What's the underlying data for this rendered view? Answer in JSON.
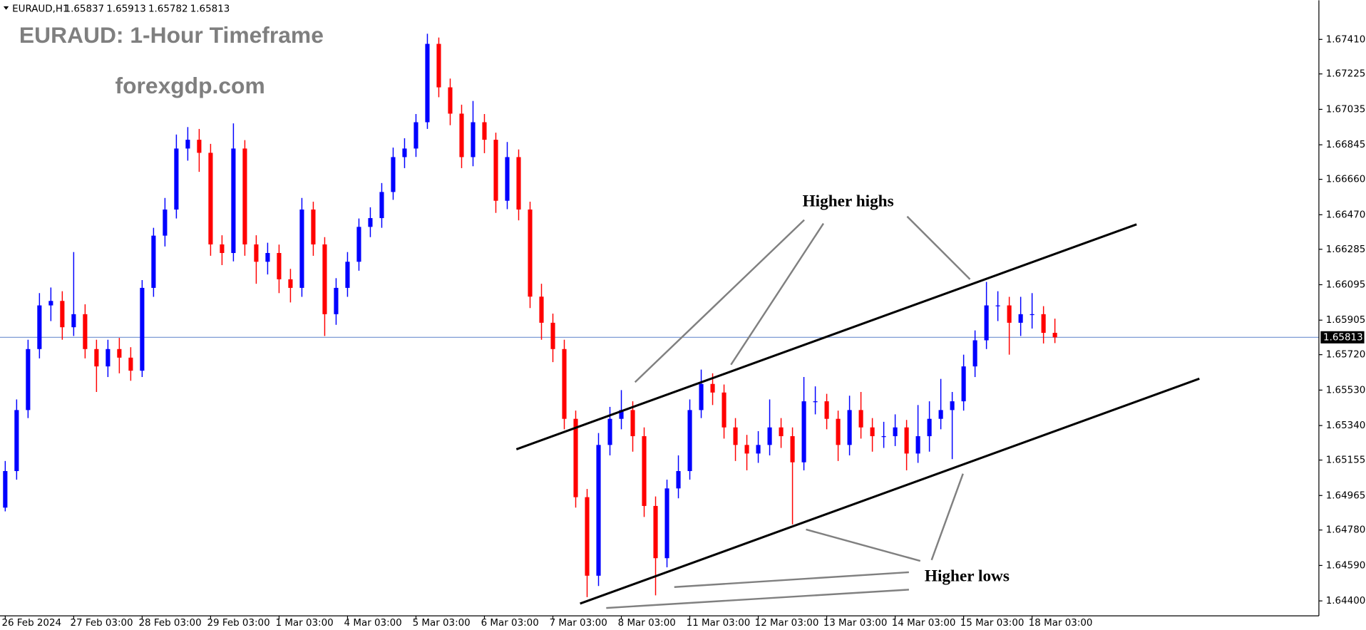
{
  "chart_data": {
    "type": "candlestick",
    "title": "EURAUD: 1-Hour Timeframe",
    "subtitle": "forexgdp.com",
    "symbol": "EURAUD,H1",
    "last_bar": {
      "open": 1.65837,
      "high": 1.65913,
      "low": 1.65782,
      "close": 1.65813
    },
    "current_price": 1.65813,
    "annotations": [
      "Higher highs",
      "Higher lows"
    ],
    "up_color": "#0000ff",
    "down_color": "#ff0000",
    "price_line_color": "#6f8fcf",
    "categories": [
      "26 Feb 2024",
      null,
      null,
      null,
      null,
      null,
      "27 Feb 03:00",
      null,
      null,
      null,
      null,
      null,
      "28 Feb 03:00",
      null,
      null,
      null,
      null,
      null,
      "29 Feb 03:00",
      null,
      null,
      null,
      null,
      null,
      "1 Mar 03:00",
      null,
      null,
      null,
      null,
      null,
      "4 Mar 03:00",
      null,
      null,
      null,
      null,
      null,
      "5 Mar 03:00",
      null,
      null,
      null,
      null,
      null,
      "6 Mar 03:00",
      null,
      null,
      null,
      null,
      null,
      "7 Mar 03:00",
      null,
      null,
      null,
      null,
      null,
      "8 Mar 03:00",
      null,
      null,
      null,
      null,
      null,
      "11 Mar 03:00",
      null,
      null,
      null,
      null,
      null,
      "12 Mar 03:00",
      null,
      null,
      null,
      null,
      null,
      "13 Mar 03:00",
      null,
      null,
      null,
      null,
      null,
      "14 Mar 03:00",
      null,
      null,
      null,
      null,
      null,
      "15 Mar 03:00",
      null,
      null,
      null,
      null,
      null,
      "18 Mar 03:00",
      null,
      null
    ],
    "open": [
      1.649,
      1.65096,
      1.65423,
      1.6575,
      1.65984,
      1.66008,
      1.65867,
      1.65937,
      1.6575,
      1.65657,
      1.6575,
      1.65704,
      1.65634,
      1.66078,
      1.66358,
      1.66498,
      1.66825,
      1.66872,
      1.66802,
      1.66311,
      1.66265,
      1.66825,
      1.66311,
      1.66218,
      1.66265,
      1.66124,
      1.66078,
      1.66498,
      1.66311,
      1.65937,
      1.66078,
      1.66218,
      1.66405,
      1.66452,
      1.66592,
      1.66779,
      1.66825,
      1.66966,
      1.67386,
      1.67153,
      1.67012,
      1.66779,
      1.66966,
      1.66872,
      1.66545,
      1.66779,
      1.66498,
      1.66031,
      1.65891,
      1.6575,
      1.65376,
      1.64956,
      1.64535,
      1.65236,
      1.65376,
      1.65423,
      1.65283,
      1.64909,
      1.64629,
      1.65003,
      1.65096,
      1.65423,
      1.65563,
      1.65517,
      1.6533,
      1.65236,
      1.6519,
      1.65236,
      1.6533,
      1.65283,
      1.65143,
      1.6547,
      1.6547,
      1.65376,
      1.65236,
      1.65423,
      1.6533,
      1.65283,
      1.65283,
      1.6533,
      1.6519,
      1.65283,
      1.65376,
      1.65423,
      1.6547,
      1.65657,
      1.65797,
      1.65984,
      1.65984,
      1.65891,
      1.65937,
      1.65937,
      1.65837
    ],
    "high": [
      1.6515,
      1.6548,
      1.658,
      1.6605,
      1.6608,
      1.6606,
      1.6627,
      1.6599,
      1.658,
      1.658,
      1.6581,
      1.6576,
      1.6612,
      1.664,
      1.6656,
      1.669,
      1.6694,
      1.6693,
      1.6685,
      1.6636,
      1.6696,
      1.6687,
      1.6636,
      1.6632,
      1.6631,
      1.6618,
      1.6656,
      1.6654,
      1.6635,
      1.6613,
      1.6627,
      1.6645,
      1.6651,
      1.6664,
      1.6683,
      1.6688,
      1.6701,
      1.6744,
      1.6742,
      1.672,
      1.6706,
      1.6708,
      1.6701,
      1.6691,
      1.6686,
      1.6682,
      1.6654,
      1.661,
      1.6594,
      1.658,
      1.6542,
      1.65,
      1.653,
      1.6544,
      1.6553,
      1.6547,
      1.6533,
      1.6496,
      1.6505,
      1.6518,
      1.6548,
      1.6564,
      1.6562,
      1.6556,
      1.6538,
      1.6529,
      1.6531,
      1.6548,
      1.6538,
      1.6533,
      1.656,
      1.6555,
      1.6551,
      1.6542,
      1.655,
      1.6552,
      1.6538,
      1.6536,
      1.654,
      1.6537,
      1.6545,
      1.6547,
      1.6559,
      1.6552,
      1.6572,
      1.6585,
      1.6611,
      1.6606,
      1.6603,
      1.6603,
      1.6605,
      1.6598,
      1.65913
    ],
    "low": [
      1.6488,
      1.6505,
      1.6538,
      1.657,
      1.659,
      1.658,
      1.6582,
      1.657,
      1.6552,
      1.656,
      1.6562,
      1.6558,
      1.656,
      1.6603,
      1.663,
      1.6645,
      1.6676,
      1.667,
      1.6625,
      1.662,
      1.6622,
      1.6625,
      1.661,
      1.6615,
      1.6605,
      1.66,
      1.6603,
      1.6625,
      1.6582,
      1.6588,
      1.6603,
      1.6617,
      1.6635,
      1.664,
      1.6655,
      1.6672,
      1.6678,
      1.6693,
      1.671,
      1.6695,
      1.6672,
      1.6673,
      1.668,
      1.6648,
      1.665,
      1.6644,
      1.6597,
      1.658,
      1.6568,
      1.6532,
      1.649,
      1.6442,
      1.6448,
      1.6518,
      1.6532,
      1.652,
      1.6485,
      1.6443,
      1.6458,
      1.6495,
      1.6505,
      1.6538,
      1.6545,
      1.6527,
      1.6515,
      1.651,
      1.6514,
      1.6518,
      1.6522,
      1.6481,
      1.651,
      1.654,
      1.6532,
      1.6515,
      1.6518,
      1.6527,
      1.652,
      1.6522,
      1.6523,
      1.651,
      1.6514,
      1.652,
      1.6532,
      1.6516,
      1.6542,
      1.656,
      1.6575,
      1.659,
      1.6572,
      1.6582,
      1.6586,
      1.6578,
      1.65782
    ],
    "close": [
      1.65096,
      1.65423,
      1.6575,
      1.65984,
      1.66008,
      1.65867,
      1.65937,
      1.6575,
      1.65657,
      1.6575,
      1.65704,
      1.65634,
      1.66078,
      1.66358,
      1.66498,
      1.66825,
      1.66872,
      1.66802,
      1.66311,
      1.66265,
      1.66825,
      1.66311,
      1.66218,
      1.66265,
      1.66124,
      1.66078,
      1.66498,
      1.66311,
      1.65937,
      1.66078,
      1.66218,
      1.66405,
      1.66452,
      1.66592,
      1.66779,
      1.66825,
      1.66966,
      1.67386,
      1.67153,
      1.67012,
      1.66779,
      1.66966,
      1.66872,
      1.66545,
      1.66779,
      1.66498,
      1.66031,
      1.65891,
      1.6575,
      1.65376,
      1.64956,
      1.64535,
      1.65236,
      1.65376,
      1.65423,
      1.65283,
      1.64909,
      1.64629,
      1.65003,
      1.65096,
      1.65423,
      1.65563,
      1.65517,
      1.6533,
      1.65236,
      1.6519,
      1.65236,
      1.6533,
      1.65283,
      1.65143,
      1.6547,
      1.6547,
      1.65376,
      1.65236,
      1.65423,
      1.6533,
      1.65283,
      1.65283,
      1.6533,
      1.6519,
      1.65283,
      1.65376,
      1.65423,
      1.6547,
      1.65657,
      1.65797,
      1.65984,
      1.65984,
      1.65891,
      1.65937,
      1.65937,
      1.65837,
      1.65813
    ],
    "ylim": [
      1.6432,
      1.6762
    ],
    "yticks": [
      {
        "value": 1.6741,
        "label": "1.67410"
      },
      {
        "value": 1.67225,
        "label": "1.67225"
      },
      {
        "value": 1.67035,
        "label": "1.67035"
      },
      {
        "value": 1.66845,
        "label": "1.66845"
      },
      {
        "value": 1.6666,
        "label": "1.66660"
      },
      {
        "value": 1.6647,
        "label": "1.66470"
      },
      {
        "value": 1.66285,
        "label": "1.66285"
      },
      {
        "value": 1.66095,
        "label": "1.66095"
      },
      {
        "value": 1.65905,
        "label": "1.65905"
      },
      {
        "value": 1.6572,
        "label": "1.65720"
      },
      {
        "value": 1.6553,
        "label": "1.65530"
      },
      {
        "value": 1.6534,
        "label": "1.65340"
      },
      {
        "value": 1.65155,
        "label": "1.65155"
      },
      {
        "value": 1.64965,
        "label": "1.64965"
      },
      {
        "value": 1.6478,
        "label": "1.64780"
      },
      {
        "value": 1.6459,
        "label": "1.64590"
      },
      {
        "value": 1.644,
        "label": "1.64400"
      }
    ]
  }
}
